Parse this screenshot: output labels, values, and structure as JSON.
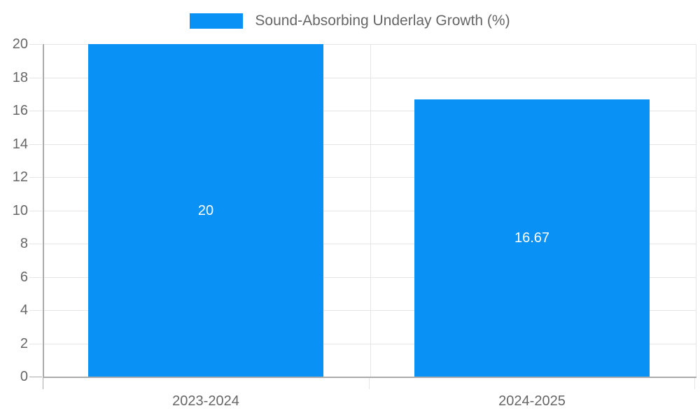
{
  "chart_data": {
    "type": "bar",
    "title": "",
    "legend_label": "Sound-Absorbing Underlay Growth (%)",
    "legend_position": "top-center",
    "categories": [
      "2023-2024",
      "2024-2025"
    ],
    "values": [
      20,
      16.67
    ],
    "value_labels": [
      "20",
      "16.67"
    ],
    "xlabel": "",
    "ylabel": "",
    "ylim": [
      0,
      20
    ],
    "y_ticks": [
      0,
      2,
      4,
      6,
      8,
      10,
      12,
      14,
      16,
      18,
      20
    ],
    "grid": true,
    "colors": {
      "bar": "#0a91f5",
      "value_label": "#ffffff",
      "grid": "#e5e5e5",
      "axis": "#ababab",
      "text": "#666666",
      "background": "#ffffff"
    }
  }
}
